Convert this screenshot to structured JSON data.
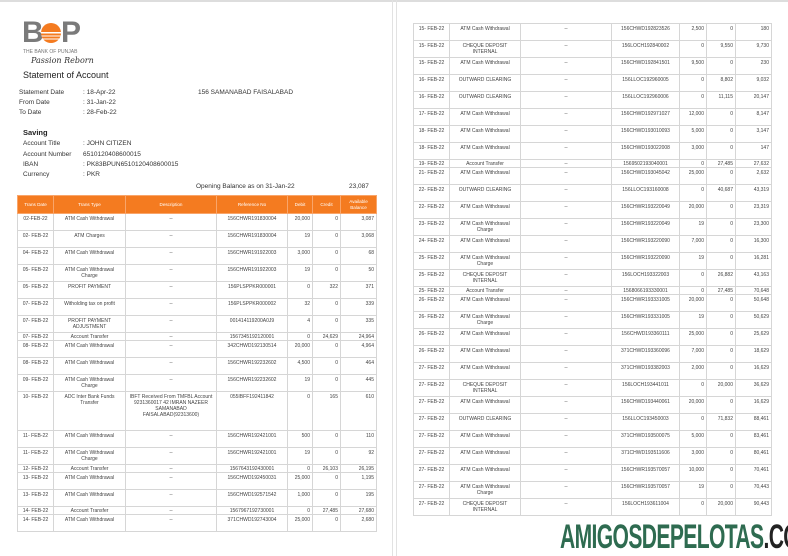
{
  "logo": {
    "letters_left": "B",
    "letters_right": "P",
    "bank_name": "THE BANK OF PUNJAB",
    "tagline": "Passion Reborn",
    "brand_color": "#f47b20"
  },
  "title": "Statement of Account",
  "info": {
    "statement_date_label": "Statement Date",
    "statement_date": ": 18-Apr-22",
    "from_label": "From Date",
    "from": ": 31-Jan-22",
    "to_label": "To Date",
    "to": ": 28-Feb-22",
    "address": "156 SAMANABAD FAISALABAD"
  },
  "account": {
    "type": "Saving",
    "title_label": "Account Title",
    "title": ": JOHN CITIZEN",
    "number_label": "Account Number",
    "number": "6510120408600015",
    "iban_label": "IBAN",
    "iban": ": PK83BPUN6510120408600015",
    "currency_label": "Currency",
    "currency": ": PKR"
  },
  "opening_balance": {
    "label": "Opening Balance as on 31-Jan-22",
    "value": "23,087"
  },
  "columns": [
    "Trans Date",
    "Trans Type",
    "Description",
    "Reference No",
    "Debit",
    "Credit",
    "Available Balance"
  ],
  "page1_rows": [
    [
      "02-FEB-22",
      "ATM Cash Withdrawal",
      "--",
      "156CHWR191830004",
      "20,000",
      "0",
      "3,087"
    ],
    [
      "02- FEB-22",
      "ATM Charges",
      "--",
      "156CHWR191830004",
      "19",
      "0",
      "3,068"
    ],
    [
      "04- FEB-22",
      "ATM Cash Withdrawal",
      "--",
      "156CHWR191922003",
      "3,000",
      "0",
      "68"
    ],
    [
      "05- FEB-22",
      "ATM Cash Withdrawal Charge",
      "--",
      "156CHWR191922003",
      "19",
      "0",
      "50"
    ],
    [
      "05- FEB-22",
      "PROFIT PAYMENT",
      "--",
      "156PLSPPKR000001",
      "0",
      "322",
      "371"
    ],
    [
      "07- FEB-22",
      "Witholding tax on profit",
      "--",
      "156PLSPPKR000002",
      "32",
      "0",
      "339"
    ],
    [
      "07- FEB-22",
      "PROFIT PAYMENT ADJUSTMENT",
      "--",
      "001414119200A0J9",
      "4",
      "0",
      "335"
    ],
    [
      "07- FEB-22",
      "Account Transfer",
      "--",
      "1567345192120001",
      "0",
      "24,629",
      "24,964"
    ],
    [
      "08- FEB-22",
      "ATM Cash Withdrawal",
      "--",
      "342CHWD192130514",
      "20,000",
      "0",
      "4,964"
    ],
    [
      "08- FEB-22",
      "ATM Cash Withdrawal",
      "--",
      "156CHWR192232602",
      "4,500",
      "0",
      "464"
    ],
    [
      "09- FEB-22",
      "ATM Cash Withdrawal Charge",
      "--",
      "156CHWR192232602",
      "19",
      "0",
      "445"
    ],
    [
      "10- FEB-22",
      "ADC Inter Bank Funds Transfer",
      "IBFT Received From TMFBL Account 9231360017 42 IMRAN NAZEER SAMANABAD FAISALABAD(92313600)",
      "055IBFF192411842",
      "0",
      "165",
      "610"
    ],
    [
      "11- FEB-22",
      "ATM Cash Withdrawal",
      "--",
      "156CHWR192421001",
      "500",
      "0",
      "110"
    ],
    [
      "11- FEB-22",
      "ATM Cash Withdrawal Charge",
      "--",
      "156CHWR192421001",
      "19",
      "0",
      "92"
    ],
    [
      "12- FEB-22",
      "Account Transfer",
      "--",
      "1567643192430001",
      "0",
      "26,103",
      "26,195"
    ],
    [
      "13- FEB-22",
      "ATM Cash Withdrawal",
      "--",
      "156CHWD192450031",
      "25,000",
      "0",
      "1,195"
    ],
    [
      "13- FEB-22",
      "ATM Cash Withdrawal",
      "--",
      "156CHWD192571542",
      "1,000",
      "0",
      "195"
    ],
    [
      "14- FEB-22",
      "Account Transfer",
      "--",
      "1567967192730001",
      "0",
      "27,485",
      "27,680"
    ],
    [
      "14- FEB-22",
      "ATM Cash Withdrawal",
      "--",
      "371CHWD192743004",
      "25,000",
      "0",
      "2,680"
    ]
  ],
  "page2_rows": [
    [
      "15- FEB-22",
      "ATM Cash Withdrawal",
      "--",
      "156CHWD192823526",
      "2,500",
      "0",
      "180"
    ],
    [
      "15- FEB-22",
      "CHEQUE DEPOSIT INTERNAL",
      "--",
      "156LOCH192840002",
      "0",
      "9,550",
      "9,730"
    ],
    [
      "15- FEB-22",
      "ATM Cash Withdrawal",
      "--",
      "156CHWD192841501",
      "9,500",
      "0",
      "230"
    ],
    [
      "16- FEB-22",
      "OUTWARD CLEARING",
      "--",
      "156LLOC192960005",
      "0",
      "8,802",
      "9,032"
    ],
    [
      "16- FEB-22",
      "OUTWARD CLEARING",
      "--",
      "156LLOC192960006",
      "0",
      "11,115",
      "20,147"
    ],
    [
      "17- FEB-22",
      "ATM Cash Withdrawal",
      "--",
      "156CHWD192971027",
      "12,000",
      "0",
      "8,147"
    ],
    [
      "18- FEB-22",
      "ATM Cash Withdrawal",
      "--",
      "156CHWD193010093",
      "5,000",
      "0",
      "3,147"
    ],
    [
      "18- FEB-22",
      "ATM Cash Withdrawal",
      "--",
      "156CHWD193022008",
      "3,000",
      "0",
      "147"
    ],
    [
      "19- FEB-22",
      "Account Transfer",
      "--",
      "1569502193040001",
      "0",
      "27,485",
      "27,632"
    ],
    [
      "21- FEB-22",
      "ATM Cash Withdrawal",
      "--",
      "156CHWD193045042",
      "25,000",
      "0",
      "2,632"
    ],
    [
      "22- FEB-22",
      "OUTWARD CLEARING",
      "--",
      "156LLOC193160008",
      "0",
      "40,687",
      "43,319"
    ],
    [
      "22- FEB-22",
      "ATM Cash Withdrawal",
      "--",
      "156CHWR193220049",
      "20,000",
      "0",
      "23,319"
    ],
    [
      "23- FEB-22",
      "ATM Cash Withdrawal Charge",
      "--",
      "156CHWR193220049",
      "19",
      "0",
      "23,300"
    ],
    [
      "24- FEB-22",
      "ATM Cash Withdrawal",
      "--",
      "156CHWR193220090",
      "7,000",
      "0",
      "16,300"
    ],
    [
      "25- FEB-22",
      "ATM Cash Withdrawal Charge",
      "--",
      "156CHWR193220090",
      "19",
      "0",
      "16,281"
    ],
    [
      "25- FEB-22",
      "CHEQUE DEPOSIT INTERNAL",
      "--",
      "156LOCH193322003",
      "0",
      "26,882",
      "43,163"
    ],
    [
      "25- FEB-22",
      "Account Transfer",
      "--",
      "1568066193330001",
      "0",
      "27,485",
      "70,648"
    ],
    [
      "26- FEB-22",
      "ATM Cash Withdrawal",
      "--",
      "156CHWR193331005",
      "20,000",
      "0",
      "50,648"
    ],
    [
      "26- FEB-22",
      "ATM Cash Withdrawal Charge",
      "--",
      "156CHWR193331005",
      "19",
      "0",
      "50,629"
    ],
    [
      "26- FEB-22",
      "ATM Cash Withdrawal",
      "--",
      "156CHWD193360111",
      "25,000",
      "0",
      "25,629"
    ],
    [
      "26- FEB-22",
      "ATM Cash Withdrawal",
      "--",
      "371CHWD193360096",
      "7,000",
      "0",
      "18,629"
    ],
    [
      "27- FEB-22",
      "ATM Cash Withdrawal",
      "--",
      "371CHWD193382003",
      "2,000",
      "0",
      "16,629"
    ],
    [
      "27- FEB-22",
      "CHEQUE DEPOSIT INTERNAL",
      "--",
      "156LOCH193441011",
      "0",
      "20,000",
      "36,629"
    ],
    [
      "27- FEB-22",
      "ATM Cash Withdrawal",
      "--",
      "156CHWD193440061",
      "20,000",
      "0",
      "16,629"
    ],
    [
      "27- FEB-22",
      "OUTWARD CLEARING",
      "--",
      "156LLOC193450003",
      "0",
      "71,832",
      "88,461"
    ],
    [
      "27- FEB-22",
      "ATM Cash Withdrawal",
      "--",
      "371CHWD193500075",
      "5,000",
      "0",
      "83,461"
    ],
    [
      "27- FEB-22",
      "ATM Cash Withdrawal",
      "--",
      "371CHWD193511606",
      "3,000",
      "0",
      "80,461"
    ],
    [
      "27- FEB-22",
      "ATM Cash Withdrawal",
      "--",
      "156CHWR193570057",
      "10,000",
      "0",
      "70,461"
    ],
    [
      "27- FEB-22",
      "ATM Cash Withdrawal Charge",
      "--",
      "156CHWR193570057",
      "19",
      "0",
      "70,443"
    ],
    [
      "27- FEB-22",
      "CHEQUE DEPOSIT INTERNAL",
      "--",
      "156LOCH193611004",
      "0",
      "20,000",
      "90,443"
    ]
  ],
  "watermark": {
    "green_part": "AMIGOSDEPELOTAS",
    "dark_part": ".COM"
  }
}
